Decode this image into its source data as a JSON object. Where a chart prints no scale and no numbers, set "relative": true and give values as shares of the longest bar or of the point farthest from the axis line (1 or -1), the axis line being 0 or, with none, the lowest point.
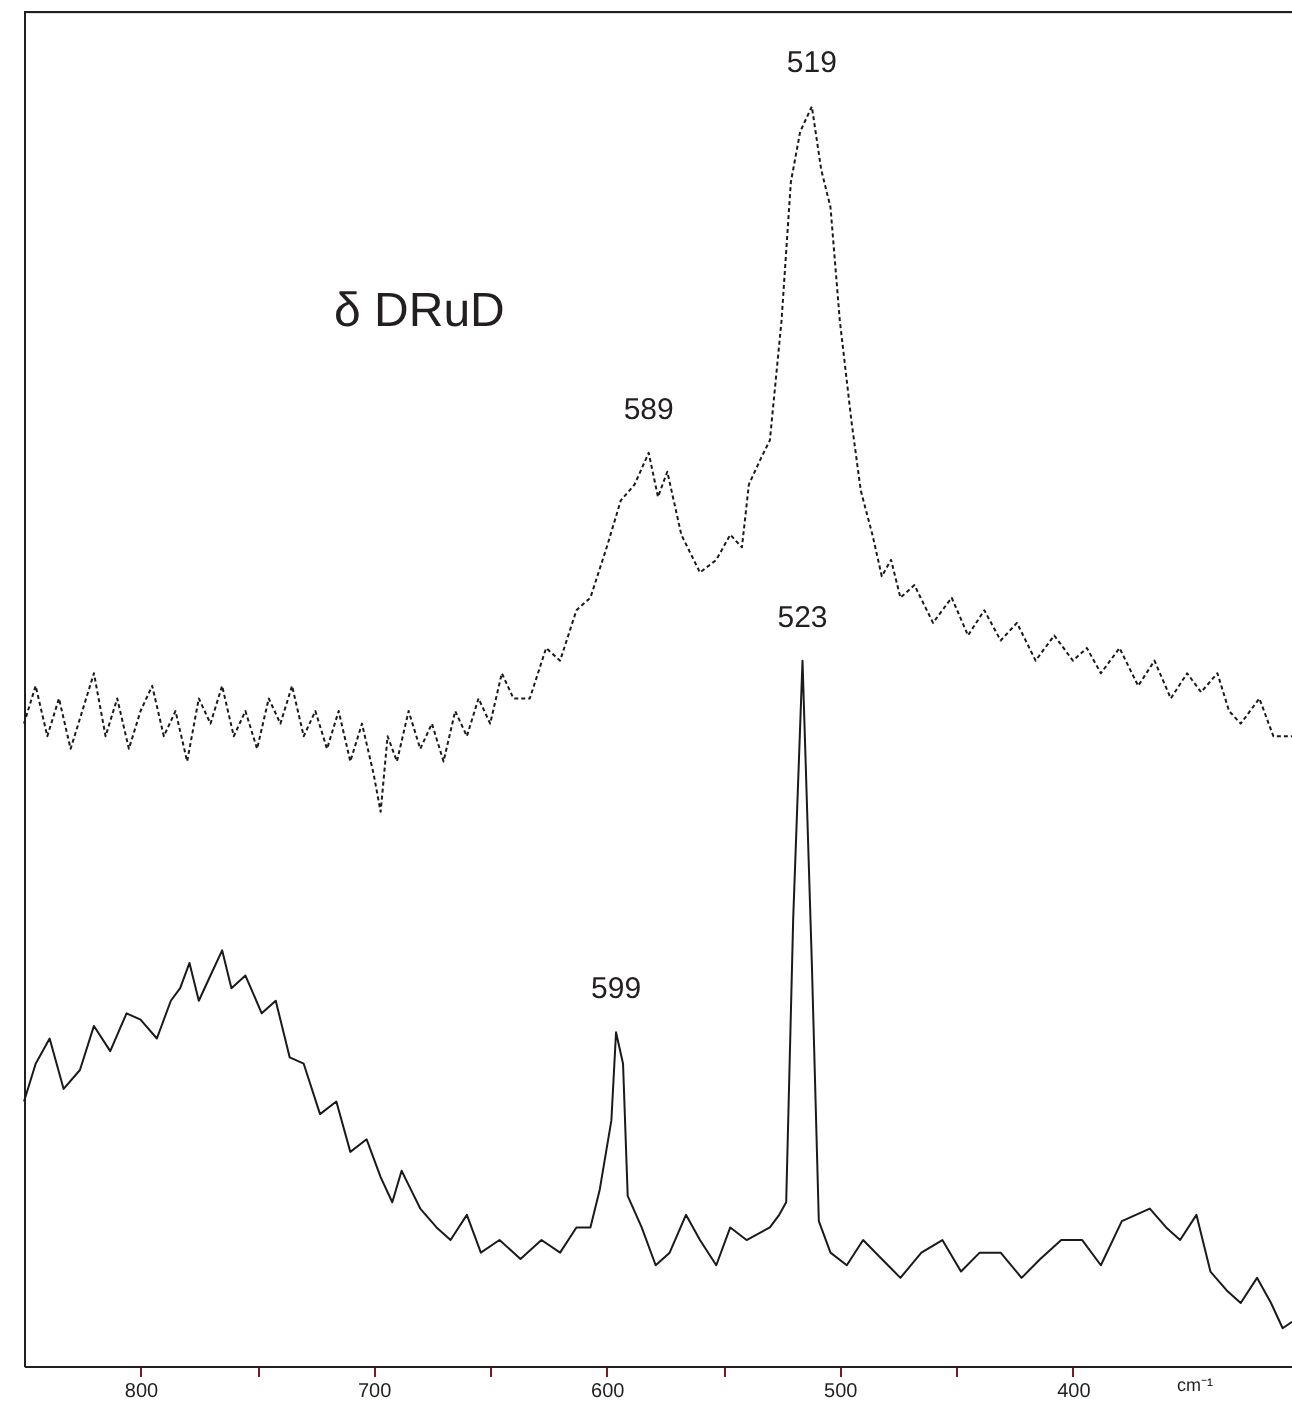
{
  "chart_data": {
    "type": "line",
    "relative": true,
    "xlabel": "cm⁻¹",
    "xlim": [
      850,
      306
    ],
    "xticks": [
      800,
      {
        "value": 750,
        "label": null
      },
      700,
      {
        "value": 650,
        "label": null
      },
      600,
      {
        "value": 550,
        "label": null
      },
      500,
      {
        "value": 450,
        "label": null
      },
      400
    ],
    "grid": false,
    "marker": "none",
    "series": [
      {
        "name": "δ DRuD",
        "color": "#1a1a1a",
        "line_style": "dotted",
        "x": [
          850,
          845,
          840,
          835,
          830,
          825,
          820,
          815,
          810,
          805,
          800,
          795,
          790,
          785,
          780,
          775,
          770,
          765,
          760,
          755,
          750,
          745,
          740,
          735,
          730,
          725,
          720,
          715,
          710,
          705,
          700,
          697,
          694,
          690,
          685,
          680,
          675,
          670,
          665,
          660,
          655,
          650,
          645,
          640,
          633,
          626,
          620,
          613,
          607,
          600,
          594,
          588,
          582,
          578,
          574,
          568,
          560,
          553,
          547,
          542,
          539,
          534,
          530,
          525,
          521,
          517,
          512,
          508,
          504,
          500,
          495,
          491,
          486,
          482,
          478,
          474,
          468,
          460,
          452,
          445,
          438,
          431,
          424,
          416,
          408,
          400,
          394,
          388,
          380,
          372,
          365,
          358,
          351,
          345,
          338,
          333,
          328,
          320,
          314,
          306
        ],
        "values": [
          0.51,
          0.54,
          0.5,
          0.53,
          0.49,
          0.52,
          0.55,
          0.5,
          0.53,
          0.49,
          0.52,
          0.54,
          0.5,
          0.52,
          0.48,
          0.53,
          0.51,
          0.54,
          0.5,
          0.52,
          0.49,
          0.53,
          0.51,
          0.54,
          0.5,
          0.52,
          0.49,
          0.52,
          0.48,
          0.51,
          0.47,
          0.44,
          0.5,
          0.48,
          0.52,
          0.49,
          0.51,
          0.48,
          0.52,
          0.5,
          0.53,
          0.51,
          0.55,
          0.53,
          0.53,
          0.57,
          0.56,
          0.6,
          0.61,
          0.65,
          0.687,
          0.7,
          0.725,
          0.69,
          0.71,
          0.66,
          0.63,
          0.64,
          0.66,
          0.65,
          0.7,
          0.72,
          0.735,
          0.83,
          0.94,
          0.98,
          1.0,
          0.95,
          0.92,
          0.83,
          0.75,
          0.695,
          0.66,
          0.627,
          0.64,
          0.61,
          0.62,
          0.59,
          0.61,
          0.58,
          0.6,
          0.576,
          0.59,
          0.56,
          0.58,
          0.56,
          0.57,
          0.55,
          0.57,
          0.54,
          0.56,
          0.53,
          0.55,
          0.535,
          0.55,
          0.52,
          0.51,
          0.53,
          0.5,
          0.5
        ]
      },
      {
        "color": "#1a1a1a",
        "line_style": "solid",
        "x": [
          850,
          845,
          839,
          833,
          826,
          820,
          813,
          806,
          800,
          793,
          787,
          783,
          779,
          775,
          770,
          765,
          761,
          755,
          748,
          742,
          736,
          730,
          723,
          716,
          710,
          703,
          697,
          692,
          688,
          684,
          680,
          673,
          667,
          660,
          654,
          646,
          637,
          628,
          620,
          613,
          607,
          603,
          598,
          596,
          593,
          591,
          585,
          579,
          573,
          566,
          560,
          553,
          547,
          540,
          530,
          526,
          523,
          520,
          516,
          512,
          509,
          504,
          497,
          490,
          482,
          474,
          465,
          456,
          448,
          440,
          431,
          422,
          414,
          405,
          396,
          388,
          379,
          373,
          367,
          360,
          354,
          347,
          341,
          334,
          328,
          321,
          315,
          310,
          306
        ],
        "values": [
          0.21,
          0.24,
          0.26,
          0.22,
          0.235,
          0.27,
          0.25,
          0.28,
          0.275,
          0.26,
          0.29,
          0.3,
          0.32,
          0.29,
          0.31,
          0.33,
          0.3,
          0.31,
          0.28,
          0.29,
          0.245,
          0.24,
          0.2,
          0.21,
          0.17,
          0.18,
          0.15,
          0.13,
          0.155,
          0.14,
          0.125,
          0.11,
          0.1,
          0.12,
          0.09,
          0.1,
          0.085,
          0.1,
          0.09,
          0.11,
          0.11,
          0.14,
          0.195,
          0.265,
          0.24,
          0.135,
          0.11,
          0.08,
          0.09,
          0.12,
          0.1,
          0.08,
          0.11,
          0.1,
          0.11,
          0.12,
          0.13,
          0.355,
          0.56,
          0.32,
          0.115,
          0.09,
          0.08,
          0.1,
          0.085,
          0.07,
          0.09,
          0.1,
          0.075,
          0.09,
          0.09,
          0.07,
          0.085,
          0.1,
          0.1,
          0.08,
          0.115,
          0.12,
          0.125,
          0.11,
          0.1,
          0.12,
          0.075,
          0.06,
          0.05,
          0.07,
          0.05,
          0.03,
          0.035
        ]
      }
    ],
    "annotations": [
      {
        "text": "519",
        "x": 512,
        "y": 1.0
      },
      {
        "text": "589",
        "x": 582,
        "y": 0.725
      },
      {
        "text": "523",
        "x": 516,
        "y": 0.56
      },
      {
        "text": "599",
        "x": 596,
        "y": 0.265
      }
    ]
  }
}
